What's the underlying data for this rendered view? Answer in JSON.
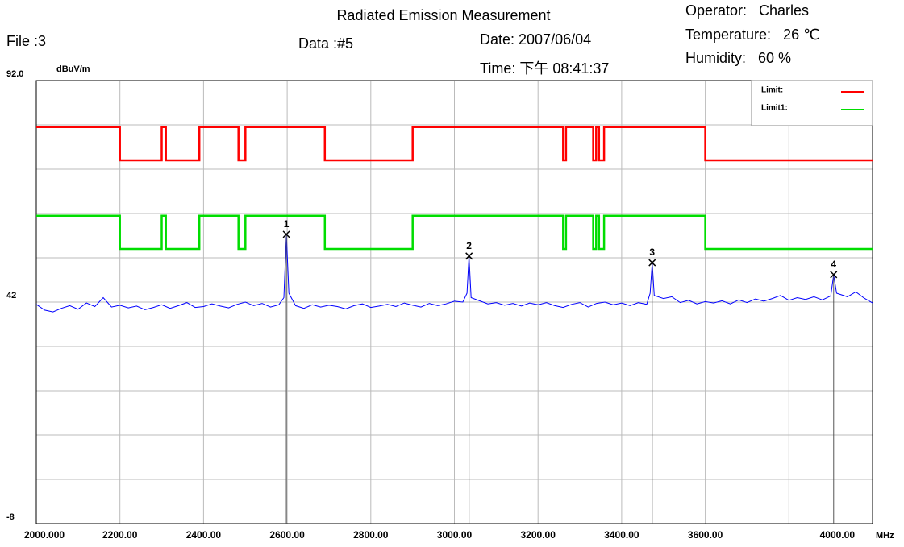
{
  "chart_data": {
    "type": "line",
    "title": "Radiated Emission Measurement",
    "annotations": {
      "file": "File :3",
      "data": "Data :#5",
      "date": "Date: 2007/06/04",
      "time": "Time: 下午 08:41:37",
      "operator": "Operator:   Charles",
      "temperature": "Temperature:   26 ℃",
      "humidity": "Humidity:   60 %"
    },
    "y_label": "dBuV/m",
    "x_label": "MHz",
    "xlim": [
      2000,
      4000
    ],
    "xticks": [
      {
        "value": 2000,
        "label": "2000.000"
      },
      {
        "value": 2200,
        "label": "2200.00"
      },
      {
        "value": 2400,
        "label": "2400.00"
      },
      {
        "value": 2600,
        "label": "2600.00"
      },
      {
        "value": 2800,
        "label": "2800.00"
      },
      {
        "value": 3000,
        "label": "3000.00"
      },
      {
        "value": 3200,
        "label": "3200.00"
      },
      {
        "value": 3400,
        "label": "3400.00"
      },
      {
        "value": 3600,
        "label": "3600.00"
      },
      {
        "value": 3800,
        "label": null
      },
      {
        "value": 4000,
        "label": "4000.00"
      }
    ],
    "ylim": [
      -8,
      92
    ],
    "yticks": [
      {
        "value": -8,
        "label": "-8"
      },
      {
        "value": 2,
        "label": null
      },
      {
        "value": 12,
        "label": null
      },
      {
        "value": 22,
        "label": null
      },
      {
        "value": 32,
        "label": null
      },
      42,
      {
        "value": 52,
        "label": null
      },
      {
        "value": 62,
        "label": null
      },
      {
        "value": 72,
        "label": null
      },
      {
        "value": 82,
        "label": null
      },
      {
        "value": 92,
        "label": "92.0"
      }
    ],
    "grid": true,
    "legend": "top-right",
    "series": [
      {
        "color": "#0000ff",
        "x": [
          2000,
          2020,
          2040,
          2060,
          2080,
          2100,
          2120,
          2140,
          2160,
          2180,
          2200,
          2220,
          2240,
          2260,
          2280,
          2300,
          2320,
          2340,
          2360,
          2380,
          2400,
          2420,
          2440,
          2460,
          2480,
          2500,
          2520,
          2540,
          2560,
          2580,
          2592,
          2598,
          2604,
          2620,
          2640,
          2660,
          2680,
          2700,
          2720,
          2740,
          2760,
          2780,
          2800,
          2820,
          2840,
          2860,
          2880,
          2900,
          2920,
          2940,
          2960,
          2980,
          3000,
          3020,
          3030,
          3035,
          3040,
          3060,
          3080,
          3100,
          3120,
          3140,
          3160,
          3180,
          3200,
          3220,
          3240,
          3260,
          3280,
          3300,
          3320,
          3340,
          3360,
          3380,
          3400,
          3420,
          3440,
          3460,
          3468,
          3473,
          3478,
          3500,
          3520,
          3540,
          3560,
          3580,
          3600,
          3620,
          3640,
          3660,
          3680,
          3700,
          3720,
          3740,
          3760,
          3780,
          3800,
          3820,
          3840,
          3860,
          3880,
          3900,
          3907,
          3914,
          3940,
          3960,
          3980,
          4000
        ],
        "values": [
          41.5,
          40.2,
          39.8,
          40.6,
          41.2,
          40.4,
          41.8,
          41.0,
          43.0,
          40.9,
          41.3,
          40.7,
          41.1,
          40.3,
          40.8,
          41.4,
          40.6,
          41.2,
          41.9,
          40.8,
          41.0,
          41.6,
          41.1,
          40.7,
          41.5,
          42.0,
          41.2,
          41.7,
          40.9,
          41.4,
          43.0,
          57.3,
          44.0,
          41.2,
          40.6,
          41.4,
          40.9,
          41.3,
          41.0,
          40.5,
          41.2,
          41.6,
          40.8,
          41.1,
          41.5,
          41.0,
          41.8,
          41.3,
          40.9,
          41.7,
          41.2,
          41.6,
          42.2,
          42.0,
          44.0,
          52.4,
          43.0,
          42.3,
          41.6,
          41.9,
          41.3,
          41.7,
          41.1,
          41.8,
          41.4,
          41.9,
          41.2,
          40.8,
          41.5,
          41.9,
          40.9,
          41.7,
          42.0,
          41.4,
          41.8,
          41.2,
          41.9,
          41.5,
          44.0,
          50.9,
          43.5,
          42.8,
          43.2,
          41.9,
          42.4,
          41.6,
          42.1,
          41.8,
          42.3,
          41.6,
          42.5,
          41.9,
          42.7,
          42.2,
          42.8,
          43.5,
          42.4,
          43.0,
          42.6,
          43.2,
          42.5,
          43.4,
          48.2,
          44.0,
          43.2,
          44.3,
          42.9,
          41.8
        ]
      },
      {
        "name": "Limit:",
        "color": "#ff0000",
        "x": [
          2000,
          2200,
          2200,
          2300,
          2300,
          2310,
          2310,
          2390,
          2390,
          2483.5,
          2483.5,
          2500,
          2500,
          2690,
          2690,
          2900,
          2900,
          3260,
          3260,
          3267,
          3267,
          3332,
          3332,
          3339,
          3339,
          3345.8,
          3345.8,
          3358,
          3358,
          3600,
          3600,
          4000
        ],
        "values": [
          81.5,
          81.5,
          74,
          74,
          81.5,
          81.5,
          74,
          74,
          81.5,
          81.5,
          74,
          74,
          81.5,
          81.5,
          74,
          74,
          81.5,
          81.5,
          74,
          74,
          81.5,
          81.5,
          74,
          74,
          81.5,
          81.5,
          74,
          74,
          81.5,
          81.5,
          74,
          74
        ]
      },
      {
        "name": "Limit1:",
        "color": "#00dd00",
        "x": [
          2000,
          2200,
          2200,
          2300,
          2300,
          2310,
          2310,
          2390,
          2390,
          2483.5,
          2483.5,
          2500,
          2500,
          2690,
          2690,
          2900,
          2900,
          3260,
          3260,
          3267,
          3267,
          3332,
          3332,
          3339,
          3339,
          3345.8,
          3345.8,
          3358,
          3358,
          3600,
          3600,
          4000
        ],
        "values": [
          61.5,
          61.5,
          54,
          54,
          61.5,
          61.5,
          54,
          54,
          61.5,
          61.5,
          54,
          54,
          61.5,
          61.5,
          54,
          54,
          61.5,
          61.5,
          54,
          54,
          61.5,
          61.5,
          54,
          54,
          61.5,
          61.5,
          54,
          54,
          61.5,
          61.5,
          54,
          54
        ]
      }
    ],
    "markers": {
      "labels": [
        "1",
        "2",
        "3",
        "4"
      ],
      "x": [
        2598,
        3035,
        3473,
        3907
      ],
      "values": [
        57.3,
        52.4,
        50.9,
        48.2
      ]
    }
  }
}
